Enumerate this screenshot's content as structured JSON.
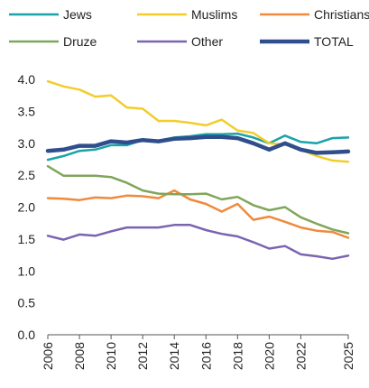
{
  "chart_data": {
    "type": "line",
    "title": "",
    "xlabel": "",
    "ylabel": "",
    "x": [
      2006,
      2007,
      2008,
      2009,
      2010,
      2011,
      2012,
      2013,
      2014,
      2015,
      2016,
      2017,
      2018,
      2019,
      2020,
      2021,
      2022,
      2023,
      2024,
      2025
    ],
    "xticks": [
      "2006",
      "2008",
      "2010",
      "2012",
      "2014",
      "2016",
      "2018",
      "2020",
      "2022",
      "2025"
    ],
    "xtick_values": [
      2006,
      2008,
      2010,
      2012,
      2014,
      2016,
      2018,
      2020,
      2022,
      2025
    ],
    "yticks": [
      "0.0",
      "0.5",
      "1.0",
      "1.5",
      "2.0",
      "2.5",
      "3.0",
      "3.5",
      "4.0"
    ],
    "ytick_values": [
      0,
      0.5,
      1.0,
      1.5,
      2.0,
      2.5,
      3.0,
      3.5,
      4.0
    ],
    "xlim": [
      2006,
      2025
    ],
    "ylim": [
      0,
      4.0
    ],
    "grid": false,
    "legend_position": "top",
    "series": [
      {
        "name": "Jews",
        "color": "#1aa3a8",
        "width": 2.5,
        "values": [
          2.74,
          2.8,
          2.88,
          2.9,
          2.97,
          2.97,
          3.05,
          3.04,
          3.09,
          3.11,
          3.14,
          3.14,
          3.15,
          3.09,
          3.0,
          3.12,
          3.02,
          3.0,
          3.08,
          3.09
        ]
      },
      {
        "name": "Muslims",
        "color": "#f2cd2b",
        "width": 2.5,
        "values": [
          3.97,
          3.89,
          3.84,
          3.73,
          3.75,
          3.56,
          3.54,
          3.35,
          3.35,
          3.32,
          3.28,
          3.37,
          3.2,
          3.16,
          3.0,
          2.98,
          2.9,
          2.8,
          2.73,
          2.71
        ]
      },
      {
        "name": "Christians",
        "color": "#ef8a3c",
        "width": 2.5,
        "values": [
          2.14,
          2.13,
          2.11,
          2.15,
          2.14,
          2.18,
          2.17,
          2.14,
          2.26,
          2.12,
          2.05,
          1.93,
          2.05,
          1.8,
          1.85,
          1.77,
          1.68,
          1.63,
          1.61,
          1.52
        ]
      },
      {
        "name": "Druze",
        "color": "#7fa65a",
        "width": 2.5,
        "values": [
          2.64,
          2.49,
          2.49,
          2.49,
          2.47,
          2.38,
          2.26,
          2.21,
          2.2,
          2.2,
          2.21,
          2.12,
          2.16,
          2.03,
          1.95,
          2.0,
          1.84,
          1.74,
          1.65,
          1.59
        ]
      },
      {
        "name": "Other",
        "color": "#7b63b0",
        "width": 2.5,
        "values": [
          1.55,
          1.49,
          1.57,
          1.55,
          1.62,
          1.68,
          1.68,
          1.68,
          1.72,
          1.72,
          1.64,
          1.58,
          1.54,
          1.45,
          1.35,
          1.39,
          1.26,
          1.23,
          1.19,
          1.24
        ]
      },
      {
        "name": "TOTAL",
        "color": "#2f4e8c",
        "width": 4.5,
        "values": [
          2.88,
          2.9,
          2.96,
          2.96,
          3.03,
          3.01,
          3.05,
          3.03,
          3.07,
          3.08,
          3.1,
          3.1,
          3.08,
          3.0,
          2.9,
          3.0,
          2.9,
          2.85,
          2.86,
          2.87
        ]
      }
    ]
  }
}
